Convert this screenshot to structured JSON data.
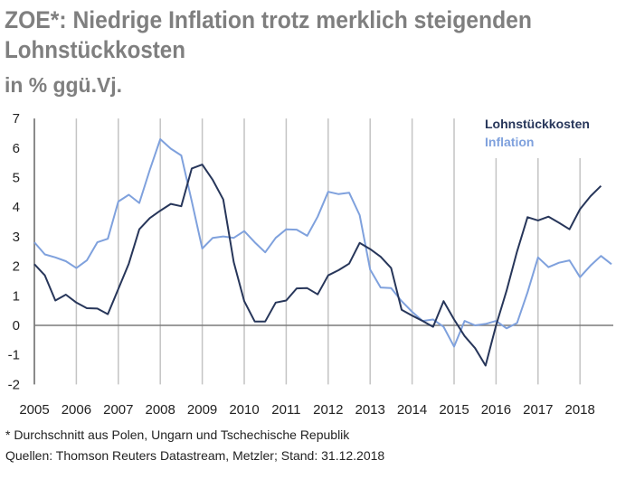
{
  "chart_data": {
    "type": "line",
    "title": "ZOE*: Niedrige Inflation trotz merklich steigenden Lohnstückkosten",
    "title_lines": [
      "ZOE*: Niedrige Inflation trotz merklich steigenden",
      "Lohnstückkosten"
    ],
    "subtitle": "in % ggü.Vj.",
    "xlabel": "",
    "ylabel": "",
    "ylim": [
      -2,
      7
    ],
    "yticks": [
      "7",
      "6",
      "5",
      "4",
      "3",
      "2",
      "1",
      "0",
      "-1",
      "-2"
    ],
    "xticks": [
      "2005",
      "2006",
      "2007",
      "2008",
      "2009",
      "2010",
      "2011",
      "2012",
      "2013",
      "2014",
      "2015",
      "2016",
      "2017",
      "2018"
    ],
    "grid": "vertical",
    "legend_position": "top-right",
    "frequency": "quarterly",
    "series": [
      {
        "name": "Lohnstückkosten",
        "color": "#27365a",
        "start": "2005Q1",
        "values": [
          2.07,
          1.69,
          0.84,
          1.04,
          0.77,
          0.58,
          0.57,
          0.38,
          1.23,
          2.09,
          3.25,
          3.63,
          3.88,
          4.11,
          4.03,
          5.31,
          5.44,
          4.92,
          4.26,
          2.14,
          0.82,
          0.13,
          0.13,
          0.77,
          0.84,
          1.25,
          1.26,
          1.05,
          1.69,
          1.87,
          2.09,
          2.79,
          2.58,
          2.32,
          1.94,
          0.53,
          0.33,
          0.15,
          -0.05,
          0.82,
          0.2,
          -0.36,
          -0.77,
          -1.36,
          0.0,
          1.17,
          2.5,
          3.66,
          3.55,
          3.68,
          3.47,
          3.25,
          3.93,
          4.37,
          4.72
        ]
      },
      {
        "name": "Inflation",
        "color": "#7fa1dd",
        "start": "2005Q1",
        "values": [
          2.81,
          2.4,
          2.3,
          2.17,
          1.94,
          2.2,
          2.81,
          2.93,
          4.19,
          4.42,
          4.14,
          5.26,
          6.3,
          5.98,
          5.75,
          4.2,
          2.6,
          2.96,
          3.01,
          2.96,
          3.19,
          2.81,
          2.47,
          2.96,
          3.25,
          3.24,
          3.03,
          3.68,
          4.52,
          4.44,
          4.49,
          3.73,
          1.89,
          1.28,
          1.26,
          0.82,
          0.46,
          0.15,
          0.2,
          -0.05,
          -0.72,
          0.15,
          0.0,
          0.05,
          0.15,
          -0.1,
          0.08,
          1.12,
          2.3,
          1.97,
          2.12,
          2.2,
          1.63,
          2.02,
          2.35,
          2.07
        ]
      }
    ]
  },
  "footnotes": {
    "note": "* Durchschnitt aus Polen, Ungarn und Tschechische Republik",
    "source": "Quellen: Thomson Reuters Datastream, Metzler; Stand: 31.12.2018"
  }
}
